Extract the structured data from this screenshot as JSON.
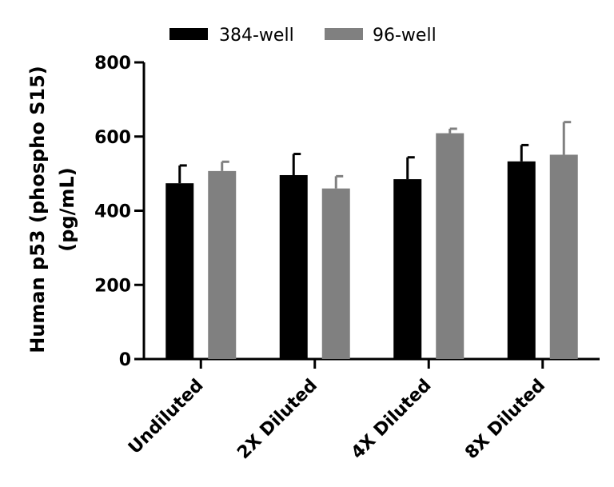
{
  "chart_data": {
    "type": "bar",
    "title": "",
    "ylabel_lines": [
      "Human p53 (phospho S15)",
      "(pg/mL)"
    ],
    "xlabel": "",
    "categories": [
      "Undiluted",
      "2X Diluted",
      "4X Diluted",
      "8X Diluted"
    ],
    "ylim": [
      0,
      800
    ],
    "yticks": [
      "0",
      "200",
      "400",
      "600",
      "800"
    ],
    "legend_position": "top",
    "series": [
      {
        "name": "384-well",
        "color": "#000000",
        "values": [
          474,
          496,
          485,
          533
        ],
        "errors": [
          48,
          57,
          59,
          44
        ]
      },
      {
        "name": "96-well",
        "color": "#808080",
        "values": [
          507,
          460,
          609,
          551
        ],
        "errors": [
          25,
          33,
          12,
          88
        ]
      }
    ]
  }
}
